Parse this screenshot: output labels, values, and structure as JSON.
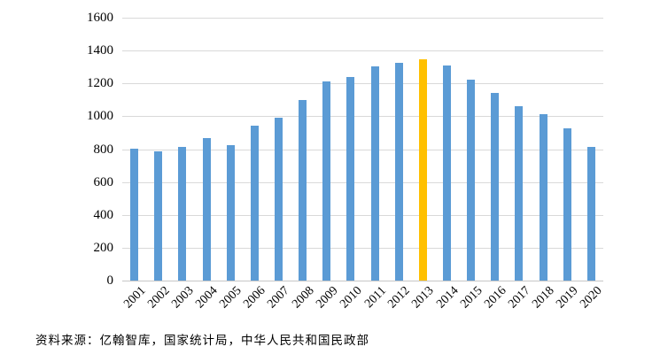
{
  "figure": {
    "source_note": "资料来源：亿翰智库，国家统计局，中华人民共和国民政部"
  },
  "colors": {
    "bar": "#5B9BD5",
    "highlight": "#FFC000",
    "gridline": "#D9D9D9",
    "axis_line": "#C6C6C6",
    "label_text": "#000000"
  },
  "chart_data": {
    "type": "bar",
    "title": "",
    "xlabel": "",
    "ylabel": "",
    "categories": [
      "2001",
      "2002",
      "2003",
      "2004",
      "2005",
      "2006",
      "2007",
      "2008",
      "2009",
      "2010",
      "2011",
      "2012",
      "2013",
      "2014",
      "2015",
      "2016",
      "2017",
      "2018",
      "2019",
      "2020"
    ],
    "values": [
      805,
      786,
      811,
      867,
      823,
      945,
      991,
      1098,
      1212,
      1241,
      1302,
      1324,
      1347,
      1307,
      1225,
      1143,
      1063,
      1014,
      927,
      813
    ],
    "highlight_category": "2013",
    "ylim": [
      0,
      1600
    ],
    "yticks": [
      0,
      200,
      400,
      600,
      800,
      1000,
      1200,
      1400,
      1600
    ],
    "grid": true,
    "legend": false
  }
}
